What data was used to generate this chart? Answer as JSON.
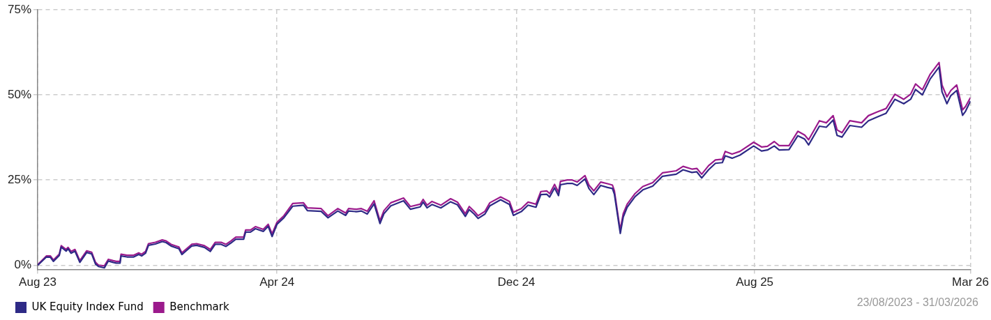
{
  "chart_data": {
    "type": "line",
    "x": [
      "2023-08-23",
      "2023-08-24",
      "2023-09-01",
      "2023-09-05",
      "2023-09-08",
      "2023-09-14",
      "2023-09-16",
      "2023-09-21",
      "2023-09-23",
      "2023-09-26",
      "2023-09-30",
      "2023-10-05",
      "2023-10-12",
      "2023-10-17",
      "2023-10-21",
      "2023-10-24",
      "2023-10-30",
      "2023-11-03",
      "2023-11-08",
      "2023-11-11",
      "2023-11-15",
      "2023-11-16",
      "2023-11-22",
      "2023-11-29",
      "2023-12-04",
      "2023-12-07",
      "2023-12-11",
      "2023-12-14",
      "2023-12-21",
      "2023-12-28",
      "2024-01-01",
      "2024-01-06",
      "2024-01-14",
      "2024-01-17",
      "2024-01-21",
      "2024-01-27",
      "2024-02-01",
      "2024-02-09",
      "2024-02-15",
      "2024-02-20",
      "2024-02-26",
      "2024-03-02",
      "2024-03-07",
      "2024-03-12",
      "2024-03-20",
      "2024-03-22",
      "2024-03-27",
      "2024-04-01",
      "2024-04-09",
      "2024-04-14",
      "2024-04-18",
      "2024-04-23",
      "2024-04-30",
      "2024-05-09",
      "2024-05-20",
      "2024-05-24",
      "2024-06-07",
      "2024-06-14",
      "2024-06-24",
      "2024-07-02",
      "2024-07-05",
      "2024-07-13",
      "2024-07-18",
      "2024-07-24",
      "2024-07-31",
      "2024-08-06",
      "2024-08-10",
      "2024-08-17",
      "2024-08-30",
      "2024-09-06",
      "2024-09-16",
      "2024-09-19",
      "2024-09-23",
      "2024-09-28",
      "2024-10-07",
      "2024-10-17",
      "2024-10-24",
      "2024-11-01",
      "2024-11-05",
      "2024-11-10",
      "2024-11-14",
      "2024-11-21",
      "2024-11-26",
      "2024-12-07",
      "2024-12-16",
      "2024-12-20",
      "2024-12-28",
      "2025-01-04",
      "2025-01-12",
      "2025-01-17",
      "2025-01-23",
      "2025-01-26",
      "2025-01-31",
      "2025-02-04",
      "2025-02-06",
      "2025-02-13",
      "2025-02-18",
      "2025-02-23",
      "2025-03-03",
      "2025-03-07",
      "2025-03-12",
      "2025-03-19",
      "2025-03-26",
      "2025-03-31",
      "2025-04-02",
      "2025-04-07",
      "2025-04-08",
      "2025-04-11",
      "2025-04-15",
      "2025-04-23",
      "2025-05-01",
      "2025-05-11",
      "2025-05-21",
      "2025-06-04",
      "2025-06-11",
      "2025-06-20",
      "2025-06-25",
      "2025-06-30",
      "2025-07-07",
      "2025-07-14",
      "2025-07-21",
      "2025-07-24",
      "2025-07-31",
      "2025-08-08",
      "2025-08-22",
      "2025-08-30",
      "2025-09-05",
      "2025-09-12",
      "2025-09-17",
      "2025-09-27",
      "2025-10-06",
      "2025-10-13",
      "2025-10-17",
      "2025-10-28",
      "2025-11-04",
      "2025-11-11",
      "2025-11-15",
      "2025-11-20",
      "2025-11-28",
      "2025-12-10",
      "2025-12-17",
      "2025-12-26",
      "2026-01-04",
      "2026-01-13",
      "2026-01-22",
      "2026-01-29",
      "2026-02-03",
      "2026-02-10",
      "2026-02-18",
      "2026-02-27",
      "2026-03-02",
      "2026-03-07",
      "2026-03-11",
      "2026-03-17",
      "2026-03-23",
      "2026-03-26",
      "2026-03-31"
    ],
    "series": [
      {
        "name": "UK Equity Index Fund",
        "color": "#2e2a86",
        "values": [
          0,
          0.2,
          2.4,
          2.3,
          1.1,
          2.8,
          5.3,
          4.1,
          4.8,
          3.5,
          4.1,
          0.8,
          3.7,
          3.3,
          0.3,
          -0.4,
          -0.8,
          1.2,
          0.8,
          0.6,
          0.6,
          2.7,
          2.4,
          2.4,
          3.1,
          2.7,
          3.5,
          5.8,
          6.2,
          6.9,
          6.6,
          5.6,
          4.8,
          3.1,
          4.1,
          5.6,
          5.8,
          5.2,
          4.0,
          6.1,
          6.1,
          5.5,
          6.5,
          7.6,
          7.6,
          9.7,
          9.7,
          10.7,
          9.9,
          11.4,
          8.4,
          12.0,
          13.9,
          17.3,
          17.6,
          16.0,
          15.8,
          13.9,
          15.9,
          14.6,
          15.9,
          15.7,
          15.9,
          15.0,
          18.0,
          12.2,
          15.1,
          17.4,
          18.9,
          16.4,
          17.1,
          18.5,
          16.8,
          17.8,
          16.8,
          18.6,
          17.7,
          14.3,
          16.3,
          15.0,
          13.7,
          15.0,
          17.4,
          19.2,
          17.8,
          14.6,
          15.7,
          17.6,
          17.0,
          20.7,
          20.8,
          20.0,
          22.7,
          20.4,
          23.6,
          24.0,
          24.0,
          23.4,
          25.3,
          22.5,
          20.7,
          23.4,
          22.8,
          22.5,
          20.8,
          11.2,
          9.3,
          14.1,
          17.0,
          20.1,
          22.1,
          23.2,
          26.1,
          26.7,
          28.0,
          27.2,
          27.4,
          25.6,
          28.0,
          29.9,
          30.1,
          32.1,
          31.4,
          32.3,
          35.0,
          33.5,
          33.8,
          35.0,
          33.8,
          33.9,
          38.0,
          37.0,
          35.3,
          40.8,
          40.5,
          42.6,
          38.1,
          37.6,
          41.0,
          40.5,
          42.4,
          43.5,
          44.6,
          48.7,
          47.4,
          48.7,
          51.6,
          50.0,
          54.7,
          58.2,
          50.9,
          47.4,
          49.8,
          51.3,
          44.0,
          45.2,
          48.2
        ]
      },
      {
        "name": "Benchmark",
        "color": "#9b1a8c",
        "values": [
          0,
          0.4,
          2.7,
          2.7,
          1.5,
          3.2,
          5.7,
          4.6,
          5.2,
          4.0,
          4.6,
          1.3,
          4.2,
          3.8,
          0.8,
          0,
          -0.2,
          1.7,
          1.3,
          1.1,
          1.1,
          3.2,
          2.9,
          2.9,
          3.6,
          3.2,
          4.0,
          6.3,
          6.7,
          7.4,
          7.1,
          6.1,
          5.3,
          3.6,
          4.6,
          6.1,
          6.3,
          5.7,
          4.6,
          6.7,
          6.7,
          6.1,
          7.1,
          8.2,
          8.2,
          10.3,
          10.3,
          11.3,
          10.5,
          12.0,
          9.2,
          12.6,
          14.5,
          18.1,
          18.3,
          16.8,
          16.6,
          14.5,
          16.6,
          15.3,
          16.6,
          16.4,
          16.6,
          15.8,
          18.9,
          13.0,
          16.0,
          18.3,
          19.7,
          17.2,
          17.9,
          19.3,
          17.6,
          18.7,
          17.6,
          19.5,
          18.5,
          15.1,
          17.2,
          15.8,
          14.5,
          15.8,
          18.3,
          20.0,
          18.7,
          15.5,
          16.6,
          18.5,
          17.9,
          21.6,
          21.8,
          21.0,
          23.7,
          21.4,
          24.6,
          25.0,
          25.0,
          24.4,
          26.3,
          23.5,
          21.8,
          24.4,
          23.9,
          23.5,
          21.8,
          12.0,
          10.5,
          15.1,
          17.9,
          21.0,
          23.1,
          24.2,
          27.1,
          27.7,
          29.0,
          28.2,
          28.4,
          26.7,
          29.2,
          30.9,
          31.1,
          33.4,
          32.6,
          33.4,
          36.1,
          34.7,
          34.9,
          36.3,
          35.1,
          35.1,
          39.3,
          38.2,
          36.8,
          42.4,
          41.8,
          43.9,
          39.7,
          38.9,
          42.4,
          41.8,
          43.9,
          45.0,
          46.0,
          50.2,
          48.7,
          50.2,
          53.2,
          51.5,
          56.1,
          59.5,
          52.9,
          49.4,
          51.3,
          52.9,
          45.6,
          46.6,
          49.2
        ]
      }
    ],
    "xlim": [
      "2023-08-23",
      "2026-03-31"
    ],
    "xticks": [
      {
        "value": "2023-08-23",
        "label": "Aug 23"
      },
      {
        "value": "2024-04-23",
        "label": "Apr 24"
      },
      {
        "value": "2024-12-23",
        "label": "Dec 24"
      },
      {
        "value": "2025-08-23",
        "label": "Aug 25"
      },
      {
        "value": "2026-03-31",
        "label": "Mar 26"
      }
    ],
    "ylim": [
      -1.3,
      75
    ],
    "yticks": [
      {
        "value": 0,
        "label": "0%"
      },
      {
        "value": 25,
        "label": "25%"
      },
      {
        "value": 50,
        "label": "50%"
      },
      {
        "value": 75,
        "label": "75%"
      }
    ],
    "grid": true,
    "legend": "bottom left",
    "marker": "none",
    "line_style": "solid",
    "annotations": [
      "23/08/2023 - 31/03/2026"
    ]
  }
}
